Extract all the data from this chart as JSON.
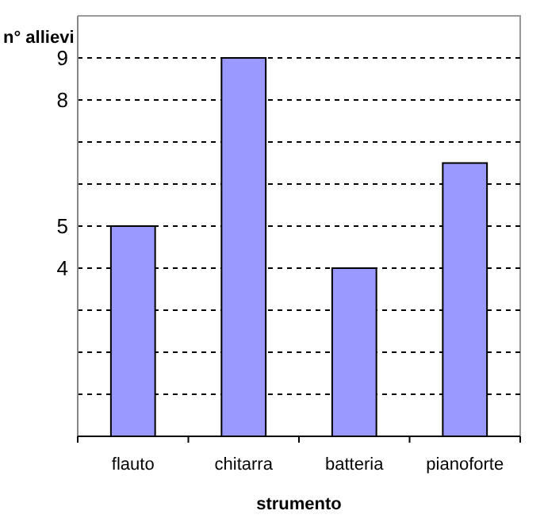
{
  "chart_data": {
    "type": "bar",
    "xlabel": "strumento",
    "ylabel": "n° allievi",
    "categories": [
      "flauto",
      "chitarra",
      "batteria",
      "pianoforte"
    ],
    "values": [
      5,
      9,
      4,
      6.5
    ],
    "color": "#9999ff",
    "ylim": [
      0,
      10
    ],
    "yticks": [
      {
        "value": 0,
        "label": null
      },
      {
        "value": 1,
        "label": null
      },
      {
        "value": 2,
        "label": null
      },
      {
        "value": 3,
        "label": null
      },
      4,
      5,
      {
        "value": 6,
        "label": null
      },
      {
        "value": 7,
        "label": null
      },
      8,
      9
    ],
    "grid": "y"
  }
}
